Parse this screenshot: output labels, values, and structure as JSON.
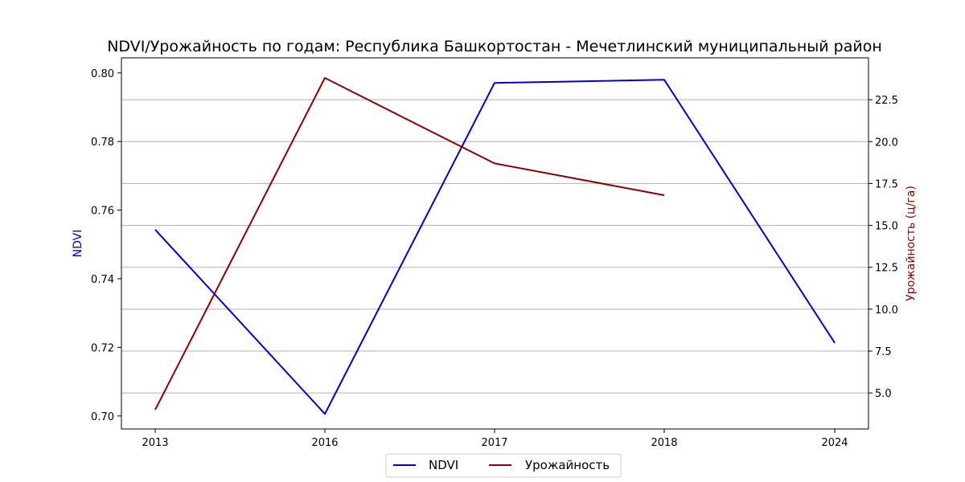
{
  "chart_data": {
    "type": "line",
    "title": "NDVI/Урожайность по годам: Республика Башкортостан - Мечетлинский муниципальный район",
    "categories": [
      "2013",
      "2016",
      "2017",
      "2018",
      "2024"
    ],
    "y_left": {
      "label": "NDVI",
      "color": "#0000cd",
      "ylim": [
        0.6962,
        0.8044
      ],
      "ticks": [
        "0.70",
        "0.72",
        "0.74",
        "0.76",
        "0.78",
        "0.80"
      ]
    },
    "y_right": {
      "label": "Урожайность (ц/га)",
      "color": "#8b0000",
      "ylim": [
        2.85,
        25.0
      ],
      "ticks": [
        "5.0",
        "7.5",
        "10.0",
        "12.5",
        "15.0",
        "17.5",
        "20.0",
        "22.5"
      ]
    },
    "series": [
      {
        "name": "NDVI",
        "axis": "left",
        "color": "#0000cd",
        "values": [
          0.7543,
          0.7006,
          0.7971,
          0.798,
          0.7213
        ]
      },
      {
        "name": "Урожайность",
        "axis": "right",
        "color": "#8b0000",
        "values": [
          4.0,
          23.8,
          18.7,
          16.8,
          null
        ]
      }
    ],
    "grid": "horizontal (right axis)",
    "legend": "bottom-center"
  }
}
